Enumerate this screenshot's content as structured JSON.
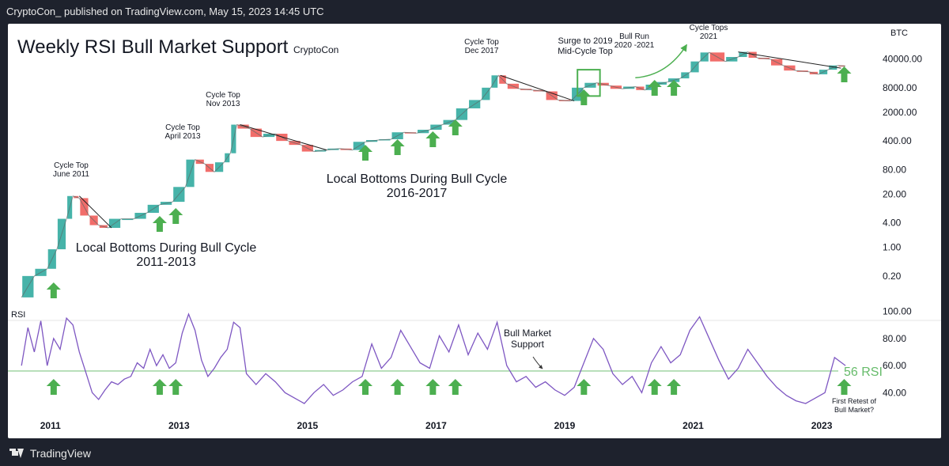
{
  "header": {
    "published_line": "CryptoCon_ published on TradingView.com, May 15, 2023 14:45 UTC"
  },
  "footer": {
    "brand": "TradingView"
  },
  "chart_data": {
    "type": "line",
    "title": "Weekly RSI Bull Market Support",
    "author": "CryptoCon",
    "price_axis_label": "BTC",
    "price_scale": "log",
    "price_ticks": [
      0.2,
      1.0,
      4.0,
      20.0,
      80.0,
      400.0,
      2000.0,
      8000.0,
      40000.0
    ],
    "price_tick_labels": [
      "0.20",
      "1.00",
      "4.00",
      "20.00",
      "80.00",
      "400.00",
      "2000.00",
      "8000.00",
      "40000.00"
    ],
    "x_ticks": [
      2011,
      2013,
      2015,
      2017,
      2019,
      2021,
      2023
    ],
    "x_tick_labels": [
      "2011",
      "2013",
      "2015",
      "2017",
      "2019",
      "2021",
      "2023"
    ],
    "price_series": {
      "name": "BTC weekly",
      "x": [
        2010.55,
        2010.75,
        2010.95,
        2011.1,
        2011.25,
        2011.35,
        2011.45,
        2011.6,
        2011.75,
        2011.9,
        2012.1,
        2012.3,
        2012.5,
        2012.7,
        2012.9,
        2013.1,
        2013.25,
        2013.4,
        2013.55,
        2013.7,
        2013.8,
        2013.9,
        2014.1,
        2014.3,
        2014.5,
        2014.7,
        2014.9,
        2015.1,
        2015.3,
        2015.5,
        2015.7,
        2015.9,
        2016.1,
        2016.3,
        2016.5,
        2016.7,
        2016.9,
        2017.1,
        2017.3,
        2017.5,
        2017.7,
        2017.85,
        2017.97,
        2018.1,
        2018.3,
        2018.5,
        2018.7,
        2018.9,
        2019.1,
        2019.3,
        2019.5,
        2019.7,
        2019.9,
        2020.1,
        2020.25,
        2020.4,
        2020.6,
        2020.8,
        2020.95,
        2021.1,
        2021.25,
        2021.5,
        2021.7,
        2021.85,
        2022.0,
        2022.2,
        2022.4,
        2022.6,
        2022.8,
        2022.95,
        2023.1,
        2023.25,
        2023.37
      ],
      "values": [
        0.06,
        0.2,
        0.3,
        0.9,
        5,
        18,
        16,
        6,
        3.5,
        3,
        5,
        5,
        7,
        11,
        13,
        30,
        140,
        110,
        70,
        120,
        200,
        1000,
        800,
        500,
        600,
        400,
        320,
        220,
        240,
        260,
        240,
        380,
        420,
        440,
        650,
        620,
        750,
        1000,
        1300,
        2500,
        4000,
        8000,
        16000,
        10000,
        7500,
        7000,
        6500,
        4000,
        3800,
        8000,
        10500,
        9000,
        7500,
        8500,
        7000,
        9500,
        11000,
        13500,
        19000,
        35000,
        58000,
        35000,
        45000,
        60000,
        43000,
        40000,
        28000,
        21000,
        19500,
        17000,
        22000,
        28000,
        27000
      ]
    },
    "rsi_series": {
      "name": "RSI",
      "ticks": [
        40.0,
        60.0,
        80.0,
        100.0
      ],
      "tick_labels": [
        "40.00",
        "60.00",
        "80.00",
        "100.00"
      ],
      "support_level": 56,
      "support_label": "56 RSI",
      "x": [
        2010.55,
        2010.65,
        2010.75,
        2010.85,
        2010.95,
        2011.05,
        2011.15,
        2011.25,
        2011.35,
        2011.45,
        2011.55,
        2011.65,
        2011.75,
        2011.85,
        2011.95,
        2012.05,
        2012.15,
        2012.25,
        2012.35,
        2012.45,
        2012.55,
        2012.65,
        2012.75,
        2012.85,
        2012.95,
        2013.05,
        2013.15,
        2013.25,
        2013.35,
        2013.45,
        2013.55,
        2013.65,
        2013.75,
        2013.85,
        2013.95,
        2014.05,
        2014.2,
        2014.35,
        2014.5,
        2014.65,
        2014.8,
        2014.95,
        2015.1,
        2015.25,
        2015.4,
        2015.55,
        2015.7,
        2015.85,
        2016.0,
        2016.15,
        2016.3,
        2016.45,
        2016.6,
        2016.75,
        2016.9,
        2017.05,
        2017.2,
        2017.35,
        2017.5,
        2017.65,
        2017.8,
        2017.95,
        2018.1,
        2018.25,
        2018.4,
        2018.55,
        2018.7,
        2018.85,
        2019.0,
        2019.15,
        2019.3,
        2019.45,
        2019.6,
        2019.75,
        2019.9,
        2020.05,
        2020.2,
        2020.35,
        2020.5,
        2020.65,
        2020.8,
        2020.95,
        2021.1,
        2021.25,
        2021.4,
        2021.55,
        2021.7,
        2021.85,
        2022.0,
        2022.15,
        2022.3,
        2022.45,
        2022.6,
        2022.75,
        2022.9,
        2023.05,
        2023.2,
        2023.37
      ],
      "values": [
        60,
        88,
        70,
        93,
        60,
        80,
        72,
        95,
        90,
        70,
        55,
        40,
        35,
        42,
        48,
        46,
        50,
        52,
        62,
        58,
        72,
        60,
        68,
        58,
        62,
        84,
        98,
        86,
        64,
        52,
        58,
        66,
        72,
        92,
        88,
        54,
        46,
        54,
        48,
        40,
        36,
        32,
        40,
        46,
        38,
        42,
        48,
        52,
        76,
        58,
        66,
        86,
        74,
        62,
        58,
        82,
        70,
        90,
        68,
        84,
        72,
        92,
        60,
        48,
        52,
        44,
        48,
        42,
        38,
        44,
        62,
        80,
        72,
        54,
        46,
        52,
        40,
        62,
        74,
        62,
        68,
        86,
        96,
        80,
        64,
        50,
        58,
        72,
        62,
        52,
        44,
        38,
        34,
        32,
        36,
        40,
        66,
        60
      ]
    },
    "annotations": [
      {
        "text": "Cycle Top\nJune 2011"
      },
      {
        "text": "Cycle Top\nApril 2013"
      },
      {
        "text": "Cycle Top\nNov 2013"
      },
      {
        "text": "Cycle Top\nDec 2017"
      },
      {
        "text": "Surge to 2019\nMid-Cycle Top"
      },
      {
        "text": "Bull Run\n2020 -2021"
      },
      {
        "text": "Cycle Tops\n2021"
      },
      {
        "text": "Local Bottoms During Bull Cycle\n2011-2013"
      },
      {
        "text": "Local Bottoms During Bull Cycle\n2016-2017"
      },
      {
        "text": "Bull Market\nSupport"
      },
      {
        "text": "First Retest of\nBull Market?"
      }
    ],
    "arrow_markers_x": [
      2011.05,
      2012.7,
      2012.95,
      2015.9,
      2016.4,
      2016.95,
      2017.3,
      2019.3,
      2020.4,
      2020.7,
      2023.35
    ],
    "colors": {
      "price_up": "#26a69a",
      "price_down": "#ef5350",
      "rsi_line": "#7e57c2",
      "support_line": "#81c784",
      "arrow": "#4caf50",
      "box": "#4caf50"
    }
  }
}
